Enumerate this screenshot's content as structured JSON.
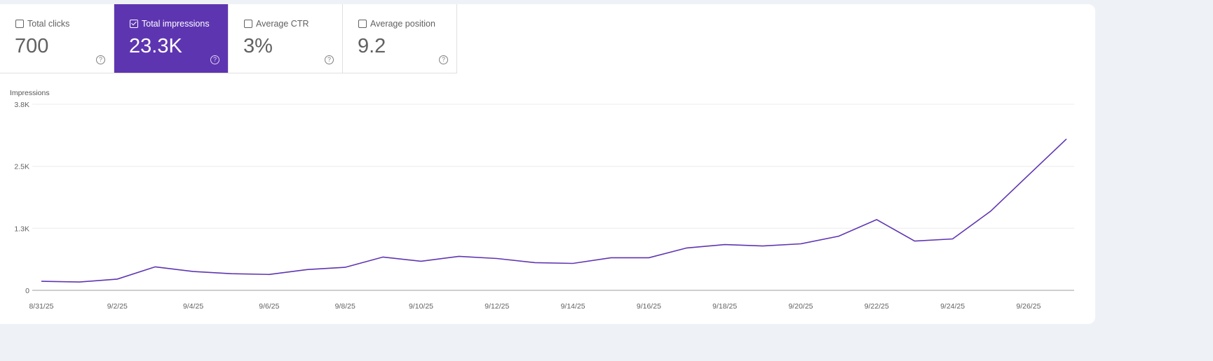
{
  "metrics": [
    {
      "label": "Total clicks",
      "value": "700",
      "checked": false
    },
    {
      "label": "Total impressions",
      "value": "23.3K",
      "checked": true
    },
    {
      "label": "Average CTR",
      "value": "3%",
      "checked": false
    },
    {
      "label": "Average position",
      "value": "9.2",
      "checked": false
    }
  ],
  "help_icon": "?",
  "colors": {
    "accent": "#5e35b1",
    "line": "#5e35b1"
  },
  "chart_data": {
    "type": "line",
    "ylabel": "Impressions",
    "ylim": [
      0,
      3800
    ],
    "yticks": [
      {
        "v": 0,
        "label": "0"
      },
      {
        "v": 1267,
        "label": "1.3K"
      },
      {
        "v": 2533,
        "label": "2.5K"
      },
      {
        "v": 3800,
        "label": "3.8K"
      }
    ],
    "xticks": [
      "8/31/25",
      "9/2/25",
      "9/4/25",
      "9/6/25",
      "9/8/25",
      "9/10/25",
      "9/12/25",
      "9/14/25",
      "9/16/25",
      "9/18/25",
      "9/20/25",
      "9/22/25",
      "9/24/25",
      "9/26/25"
    ],
    "grid": true,
    "series": [
      {
        "x": [
          "8/31/25",
          "9/1/25",
          "9/2/25",
          "9/3/25",
          "9/4/25",
          "9/5/25",
          "9/6/25",
          "9/7/25",
          "9/8/25",
          "9/9/25",
          "9/10/25",
          "9/11/25",
          "9/12/25",
          "9/13/25",
          "9/14/25",
          "9/15/25",
          "9/16/25",
          "9/17/25",
          "9/18/25",
          "9/19/25",
          "9/20/25",
          "9/21/25",
          "9/22/25",
          "9/23/25",
          "9/24/25",
          "9/25/25",
          "9/26/25",
          "9/27/25"
        ],
        "values": [
          185,
          170,
          230,
          480,
          385,
          340,
          325,
          425,
          470,
          680,
          595,
          695,
          650,
          565,
          550,
          665,
          665,
          865,
          935,
          905,
          950,
          1105,
          1445,
          1005,
          1050,
          1615,
          2355,
          3090
        ]
      }
    ]
  }
}
